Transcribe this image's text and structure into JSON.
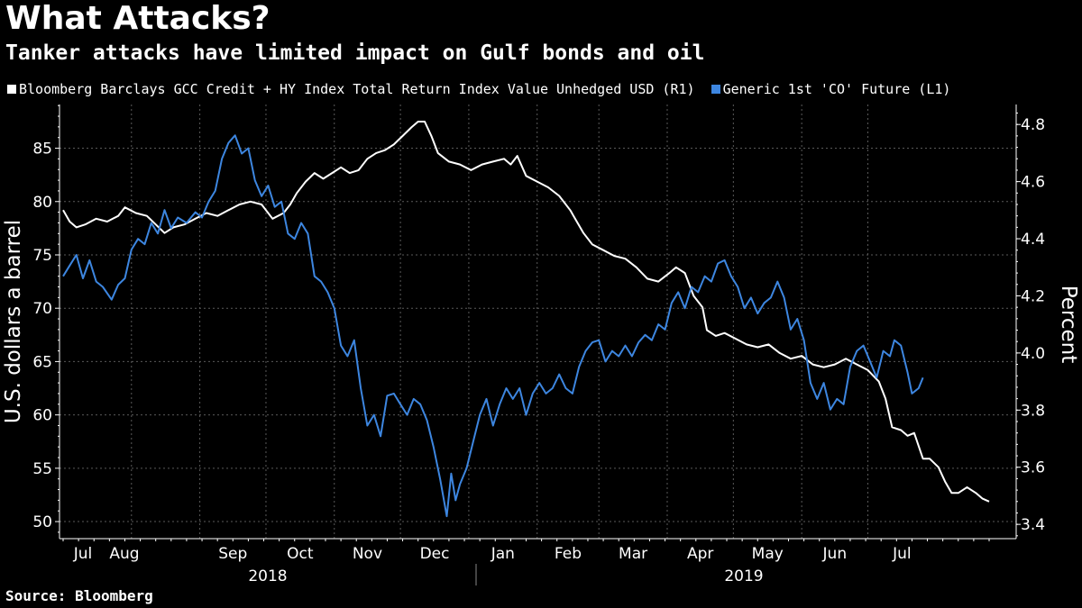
{
  "title": "What Attacks?",
  "subtitle": "Tanker attacks have limited impact on Gulf bonds and oil",
  "source": "Source: Bloomberg",
  "colors": {
    "series_white": "#ffffff",
    "series_blue": "#3d86e0",
    "grid": "#5a5a5a"
  },
  "chart_data": {
    "type": "line",
    "x_labels": [
      "Jul",
      "Aug",
      "Sep",
      "Oct",
      "Nov",
      "Dec",
      "Jan",
      "Feb",
      "Mar",
      "Apr",
      "May",
      "Jun",
      "Jul"
    ],
    "year_labels": [
      "2018",
      "2019"
    ],
    "left_axis": {
      "label": "U.S. dollars a barrel",
      "ticks": [
        50,
        55,
        60,
        65,
        70,
        75,
        80,
        85
      ],
      "range": [
        48.4,
        89.1
      ]
    },
    "right_axis": {
      "label": "Percent",
      "ticks": [
        "3.4",
        "3.6",
        "3.8",
        "4.0",
        "4.2",
        "4.4",
        "4.6",
        "4.8"
      ],
      "range": [
        3.35,
        4.87
      ]
    },
    "series": [
      {
        "name": "Bloomberg Barclays GCC Credit + HY Index Total Return Index Value Unhedged USD (R1)",
        "axis": "right",
        "color": "#ffffff",
        "points": [
          [
            0,
            4.5
          ],
          [
            3,
            4.46
          ],
          [
            6,
            4.44
          ],
          [
            10,
            4.45
          ],
          [
            15,
            4.47
          ],
          [
            20,
            4.46
          ],
          [
            25,
            4.48
          ],
          [
            28,
            4.51
          ],
          [
            33,
            4.49
          ],
          [
            38,
            4.48
          ],
          [
            42,
            4.45
          ],
          [
            46,
            4.42
          ],
          [
            50,
            4.44
          ],
          [
            55,
            4.45
          ],
          [
            60,
            4.47
          ],
          [
            65,
            4.49
          ],
          [
            70,
            4.48
          ],
          [
            75,
            4.5
          ],
          [
            80,
            4.52
          ],
          [
            85,
            4.53
          ],
          [
            90,
            4.52
          ],
          [
            95,
            4.47
          ],
          [
            100,
            4.49
          ],
          [
            103,
            4.52
          ],
          [
            106,
            4.56
          ],
          [
            110,
            4.6
          ],
          [
            114,
            4.63
          ],
          [
            118,
            4.61
          ],
          [
            122,
            4.63
          ],
          [
            126,
            4.65
          ],
          [
            130,
            4.63
          ],
          [
            134,
            4.64
          ],
          [
            138,
            4.68
          ],
          [
            142,
            4.7
          ],
          [
            146,
            4.71
          ],
          [
            150,
            4.73
          ],
          [
            154,
            4.76
          ],
          [
            158,
            4.79
          ],
          [
            161,
            4.81
          ],
          [
            164,
            4.81
          ],
          [
            167,
            4.76
          ],
          [
            170,
            4.7
          ],
          [
            175,
            4.67
          ],
          [
            180,
            4.66
          ],
          [
            185,
            4.64
          ],
          [
            190,
            4.66
          ],
          [
            195,
            4.67
          ],
          [
            200,
            4.68
          ],
          [
            203,
            4.66
          ],
          [
            206,
            4.69
          ],
          [
            210,
            4.62
          ],
          [
            215,
            4.6
          ],
          [
            220,
            4.58
          ],
          [
            225,
            4.55
          ],
          [
            230,
            4.5
          ],
          [
            233,
            4.46
          ],
          [
            236,
            4.42
          ],
          [
            240,
            4.38
          ],
          [
            245,
            4.36
          ],
          [
            250,
            4.34
          ],
          [
            255,
            4.33
          ],
          [
            260,
            4.3
          ],
          [
            265,
            4.26
          ],
          [
            270,
            4.25
          ],
          [
            275,
            4.28
          ],
          [
            278,
            4.3
          ],
          [
            282,
            4.28
          ],
          [
            286,
            4.2
          ],
          [
            290,
            4.16
          ],
          [
            292,
            4.08
          ],
          [
            296,
            4.06
          ],
          [
            300,
            4.07
          ],
          [
            305,
            4.05
          ],
          [
            310,
            4.03
          ],
          [
            315,
            4.02
          ],
          [
            320,
            4.03
          ],
          [
            325,
            4.0
          ],
          [
            330,
            3.98
          ],
          [
            335,
            3.99
          ],
          [
            340,
            3.96
          ],
          [
            345,
            3.95
          ],
          [
            350,
            3.96
          ],
          [
            355,
            3.98
          ],
          [
            360,
            3.96
          ],
          [
            365,
            3.94
          ],
          [
            370,
            3.9
          ],
          [
            373,
            3.84
          ],
          [
            376,
            3.74
          ],
          [
            380,
            3.73
          ],
          [
            383,
            3.71
          ],
          [
            386,
            3.72
          ],
          [
            390,
            3.63
          ],
          [
            393,
            3.63
          ],
          [
            397,
            3.6
          ],
          [
            400,
            3.55
          ],
          [
            403,
            3.51
          ],
          [
            406,
            3.51
          ],
          [
            410,
            3.53
          ],
          [
            414,
            3.51
          ],
          [
            417,
            3.49
          ],
          [
            420,
            3.48
          ]
        ]
      },
      {
        "name": "Generic 1st 'CO' Future (L1)",
        "axis": "left",
        "color": "#3d86e0",
        "points": [
          [
            0,
            73.0
          ],
          [
            3,
            74.0
          ],
          [
            6,
            75.0
          ],
          [
            9,
            72.8
          ],
          [
            12,
            74.5
          ],
          [
            15,
            72.5
          ],
          [
            18,
            72.0
          ],
          [
            22,
            70.8
          ],
          [
            25,
            72.2
          ],
          [
            28,
            72.8
          ],
          [
            31,
            75.5
          ],
          [
            34,
            76.5
          ],
          [
            37,
            76.0
          ],
          [
            40,
            78.0
          ],
          [
            43,
            77.0
          ],
          [
            46,
            79.2
          ],
          [
            49,
            77.5
          ],
          [
            52,
            78.5
          ],
          [
            56,
            78.0
          ],
          [
            60,
            79.0
          ],
          [
            63,
            78.5
          ],
          [
            66,
            80.0
          ],
          [
            69,
            81.0
          ],
          [
            72,
            84.0
          ],
          [
            75,
            85.5
          ],
          [
            78,
            86.2
          ],
          [
            81,
            84.5
          ],
          [
            84,
            85.0
          ],
          [
            87,
            82.0
          ],
          [
            90,
            80.5
          ],
          [
            93,
            81.5
          ],
          [
            96,
            79.5
          ],
          [
            99,
            80.0
          ],
          [
            102,
            77.0
          ],
          [
            105,
            76.5
          ],
          [
            108,
            78.0
          ],
          [
            111,
            77.0
          ],
          [
            114,
            73.0
          ],
          [
            117,
            72.5
          ],
          [
            120,
            71.5
          ],
          [
            123,
            70.0
          ],
          [
            126,
            66.5
          ],
          [
            129,
            65.5
          ],
          [
            132,
            67.0
          ],
          [
            135,
            62.5
          ],
          [
            138,
            59.0
          ],
          [
            141,
            60.0
          ],
          [
            144,
            58.0
          ],
          [
            147,
            61.8
          ],
          [
            150,
            62.0
          ],
          [
            153,
            61.0
          ],
          [
            156,
            60.0
          ],
          [
            159,
            61.5
          ],
          [
            162,
            61.0
          ],
          [
            165,
            59.5
          ],
          [
            168,
            57.0
          ],
          [
            171,
            54.0
          ],
          [
            174,
            50.5
          ],
          [
            176,
            54.5
          ],
          [
            178,
            52.0
          ],
          [
            180,
            53.5
          ],
          [
            183,
            55.0
          ],
          [
            186,
            57.5
          ],
          [
            189,
            60.0
          ],
          [
            192,
            61.5
          ],
          [
            195,
            59.0
          ],
          [
            198,
            61.0
          ],
          [
            201,
            62.5
          ],
          [
            204,
            61.5
          ],
          [
            207,
            62.5
          ],
          [
            210,
            60.0
          ],
          [
            213,
            62.0
          ],
          [
            216,
            63.0
          ],
          [
            219,
            62.0
          ],
          [
            222,
            62.5
          ],
          [
            225,
            63.8
          ],
          [
            228,
            62.5
          ],
          [
            231,
            62.0
          ],
          [
            234,
            64.5
          ],
          [
            237,
            66.0
          ],
          [
            240,
            66.8
          ],
          [
            243,
            67.0
          ],
          [
            246,
            65.0
          ],
          [
            249,
            66.0
          ],
          [
            252,
            65.5
          ],
          [
            255,
            66.5
          ],
          [
            258,
            65.5
          ],
          [
            261,
            66.8
          ],
          [
            264,
            67.5
          ],
          [
            267,
            67.0
          ],
          [
            270,
            68.5
          ],
          [
            273,
            68.0
          ],
          [
            276,
            70.5
          ],
          [
            279,
            71.5
          ],
          [
            282,
            70.0
          ],
          [
            285,
            72.0
          ],
          [
            288,
            71.5
          ],
          [
            291,
            73.0
          ],
          [
            294,
            72.5
          ],
          [
            297,
            74.2
          ],
          [
            300,
            74.5
          ],
          [
            303,
            73.0
          ],
          [
            306,
            72.0
          ],
          [
            309,
            70.0
          ],
          [
            312,
            71.0
          ],
          [
            315,
            69.5
          ],
          [
            318,
            70.5
          ],
          [
            321,
            71.0
          ],
          [
            324,
            72.5
          ],
          [
            327,
            71.0
          ],
          [
            330,
            68.0
          ],
          [
            333,
            69.0
          ],
          [
            336,
            67.0
          ],
          [
            339,
            63.0
          ],
          [
            342,
            61.5
          ],
          [
            345,
            63.0
          ],
          [
            348,
            60.5
          ],
          [
            351,
            61.5
          ],
          [
            354,
            61.0
          ],
          [
            357,
            64.5
          ],
          [
            360,
            66.0
          ],
          [
            363,
            66.5
          ],
          [
            366,
            65.0
          ],
          [
            369,
            63.5
          ],
          [
            372,
            66.0
          ],
          [
            375,
            65.5
          ],
          [
            377,
            67.0
          ],
          [
            380,
            66.5
          ],
          [
            383,
            64.0
          ],
          [
            385,
            62.0
          ],
          [
            388,
            62.5
          ],
          [
            390,
            63.5
          ]
        ]
      }
    ]
  }
}
